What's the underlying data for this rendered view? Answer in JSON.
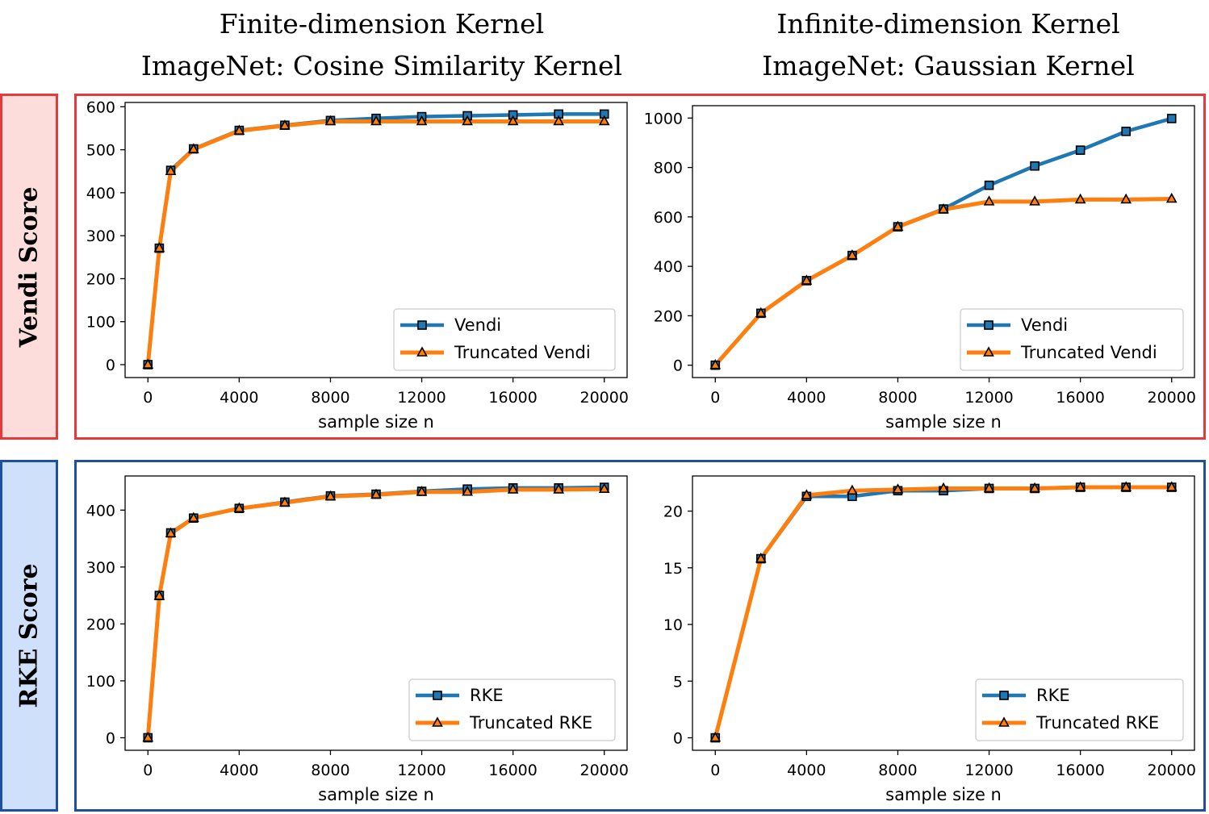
{
  "column_titles": [
    {
      "line1": "Finite-dimension Kernel",
      "line2": "ImageNet: Cosine Similarity Kernel"
    },
    {
      "line1": "Infinite-dimension Kernel",
      "line2": "ImageNet: Gaussian Kernel"
    }
  ],
  "row_labels": [
    {
      "text": "Vendi Score",
      "border_color": "#e8393a",
      "fill_color": "#fddcdc"
    },
    {
      "text": "RKE Score",
      "border_color": "#1f4fa0",
      "fill_color": "#cfe0fb"
    }
  ],
  "colors": {
    "series_primary": "#1f77b4",
    "series_truncated": "#ff7f0e",
    "marker_edge": "#000000"
  },
  "chart_data": [
    {
      "type": "line",
      "row": "Vendi Score",
      "column": "Finite-dimension Kernel",
      "xlabel": "sample size n",
      "ylabel": "",
      "xlim": [
        -1000,
        21000
      ],
      "ylim": [
        -30,
        610
      ],
      "xticks": [
        0,
        4000,
        8000,
        12000,
        16000,
        20000
      ],
      "yticks": [
        0,
        100,
        200,
        300,
        400,
        500,
        600
      ],
      "legend_position": "lower right",
      "series": [
        {
          "name": "Vendi",
          "marker": "square",
          "x": [
            0,
            500,
            1000,
            2000,
            4000,
            6000,
            8000,
            10000,
            12000,
            14000,
            16000,
            18000,
            20000
          ],
          "y": [
            0,
            271,
            452,
            502,
            545,
            557,
            568,
            573,
            577,
            579,
            581,
            583,
            583
          ]
        },
        {
          "name": "Truncated Vendi",
          "marker": "triangle",
          "x": [
            0,
            500,
            1000,
            2000,
            4000,
            6000,
            8000,
            10000,
            12000,
            14000,
            16000,
            18000,
            20000
          ],
          "y": [
            0,
            271,
            450,
            501,
            544,
            556,
            566,
            566,
            566,
            566,
            566,
            566,
            566
          ]
        }
      ]
    },
    {
      "type": "line",
      "row": "Vendi Score",
      "column": "Infinite-dimension Kernel",
      "xlabel": "sample size n",
      "ylabel": "",
      "xlim": [
        -1000,
        21000
      ],
      "ylim": [
        -50,
        1050
      ],
      "xticks": [
        0,
        4000,
        8000,
        12000,
        16000,
        20000
      ],
      "yticks": [
        0,
        200,
        400,
        600,
        800,
        1000
      ],
      "legend_position": "lower right",
      "series": [
        {
          "name": "Vendi",
          "marker": "square",
          "x": [
            0,
            2000,
            4000,
            6000,
            8000,
            10000,
            12000,
            14000,
            16000,
            18000,
            20000
          ],
          "y": [
            0,
            210,
            342,
            444,
            560,
            632,
            728,
            806,
            870,
            946,
            998
          ]
        },
        {
          "name": "Truncated Vendi",
          "marker": "triangle",
          "x": [
            0,
            2000,
            4000,
            6000,
            8000,
            10000,
            12000,
            14000,
            16000,
            18000,
            20000
          ],
          "y": [
            0,
            210,
            342,
            444,
            560,
            630,
            662,
            662,
            670,
            670,
            673
          ]
        }
      ]
    },
    {
      "type": "line",
      "row": "RKE Score",
      "column": "Finite-dimension Kernel",
      "xlabel": "sample size n",
      "ylabel": "",
      "xlim": [
        -1000,
        21000
      ],
      "ylim": [
        -22,
        460
      ],
      "xticks": [
        0,
        4000,
        8000,
        12000,
        16000,
        20000
      ],
      "yticks": [
        0,
        100,
        200,
        300,
        400
      ],
      "legend_position": "lower right",
      "series": [
        {
          "name": "RKE",
          "marker": "square",
          "x": [
            0,
            500,
            1000,
            2000,
            4000,
            6000,
            8000,
            10000,
            12000,
            14000,
            16000,
            18000,
            20000
          ],
          "y": [
            0,
            250,
            360,
            386,
            403,
            414,
            425,
            428,
            433,
            437,
            439,
            439,
            440
          ]
        },
        {
          "name": "Truncated RKE",
          "marker": "triangle",
          "x": [
            0,
            500,
            1000,
            2000,
            4000,
            6000,
            8000,
            10000,
            12000,
            14000,
            16000,
            18000,
            20000
          ],
          "y": [
            0,
            249,
            359,
            386,
            403,
            413,
            424,
            427,
            432,
            432,
            436,
            436,
            437
          ]
        }
      ]
    },
    {
      "type": "line",
      "row": "RKE Score",
      "column": "Infinite-dimension Kernel",
      "xlabel": "sample size n",
      "ylabel": "",
      "xlim": [
        -1000,
        21000
      ],
      "ylim": [
        -1.1,
        23.1
      ],
      "xticks": [
        0,
        4000,
        8000,
        12000,
        16000,
        20000
      ],
      "yticks": [
        0,
        5,
        10,
        15,
        20
      ],
      "legend_position": "lower right",
      "series": [
        {
          "name": "RKE",
          "marker": "square",
          "x": [
            0,
            2000,
            4000,
            6000,
            8000,
            10000,
            12000,
            14000,
            16000,
            18000,
            20000
          ],
          "y": [
            0,
            15.8,
            21.3,
            21.3,
            21.8,
            21.8,
            22.0,
            22.0,
            22.1,
            22.1,
            22.1
          ]
        },
        {
          "name": "Truncated RKE",
          "marker": "triangle",
          "x": [
            0,
            2000,
            4000,
            6000,
            8000,
            10000,
            12000,
            14000,
            16000,
            18000,
            20000
          ],
          "y": [
            0,
            15.8,
            21.4,
            21.8,
            21.9,
            22.0,
            22.0,
            22.0,
            22.1,
            22.1,
            22.1
          ]
        }
      ]
    }
  ]
}
